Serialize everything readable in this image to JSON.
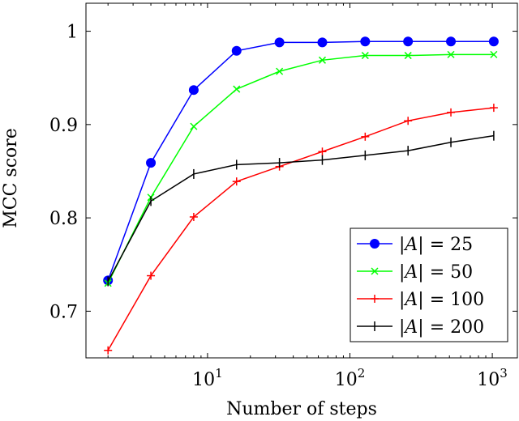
{
  "chart_data": {
    "type": "line",
    "xlabel": "Number of steps",
    "ylabel": "MCC score",
    "x_scale": "log",
    "xlim": [
      1.4,
      1500
    ],
    "ylim": [
      0.65,
      1.03
    ],
    "y_ticks": [
      0.7,
      0.8,
      0.9,
      1.0
    ],
    "y_tick_labels": [
      "0.7",
      "0.8",
      "0.9",
      "1"
    ],
    "x_ticks": [
      10,
      100,
      1000
    ],
    "x_tick_labels": [
      {
        "base": "10",
        "exp": "1"
      },
      {
        "base": "10",
        "exp": "2"
      },
      {
        "base": "10",
        "exp": "3"
      }
    ],
    "legend_position": "bottom-right",
    "x": [
      2,
      4,
      8,
      16,
      32,
      64,
      128,
      256,
      512,
      1024
    ],
    "series": [
      {
        "name": "|A| = 25",
        "label_lhs": "|A|",
        "label_rhs": "25",
        "color": "#0000ff",
        "marker": "circle",
        "values": [
          0.733,
          0.859,
          0.937,
          0.979,
          0.988,
          0.988,
          0.989,
          0.989,
          0.989,
          0.989
        ]
      },
      {
        "name": "|A| = 50",
        "label_lhs": "|A|",
        "label_rhs": "50",
        "color": "#00ff00",
        "marker": "x",
        "values": [
          0.73,
          0.822,
          0.898,
          0.938,
          0.957,
          0.969,
          0.974,
          0.974,
          0.975,
          0.975
        ]
      },
      {
        "name": "|A| = 100",
        "label_lhs": "|A|",
        "label_rhs": "100",
        "color": "#ff0000",
        "marker": "plus",
        "values": [
          0.658,
          0.738,
          0.801,
          0.839,
          0.855,
          0.871,
          0.887,
          0.904,
          0.913,
          0.918
        ]
      },
      {
        "name": "|A| = 200",
        "label_lhs": "|A|",
        "label_rhs": "200",
        "color": "#000000",
        "marker": "vbar",
        "values": [
          0.732,
          0.818,
          0.847,
          0.857,
          0.859,
          0.862,
          0.867,
          0.872,
          0.881,
          0.888
        ]
      }
    ]
  }
}
